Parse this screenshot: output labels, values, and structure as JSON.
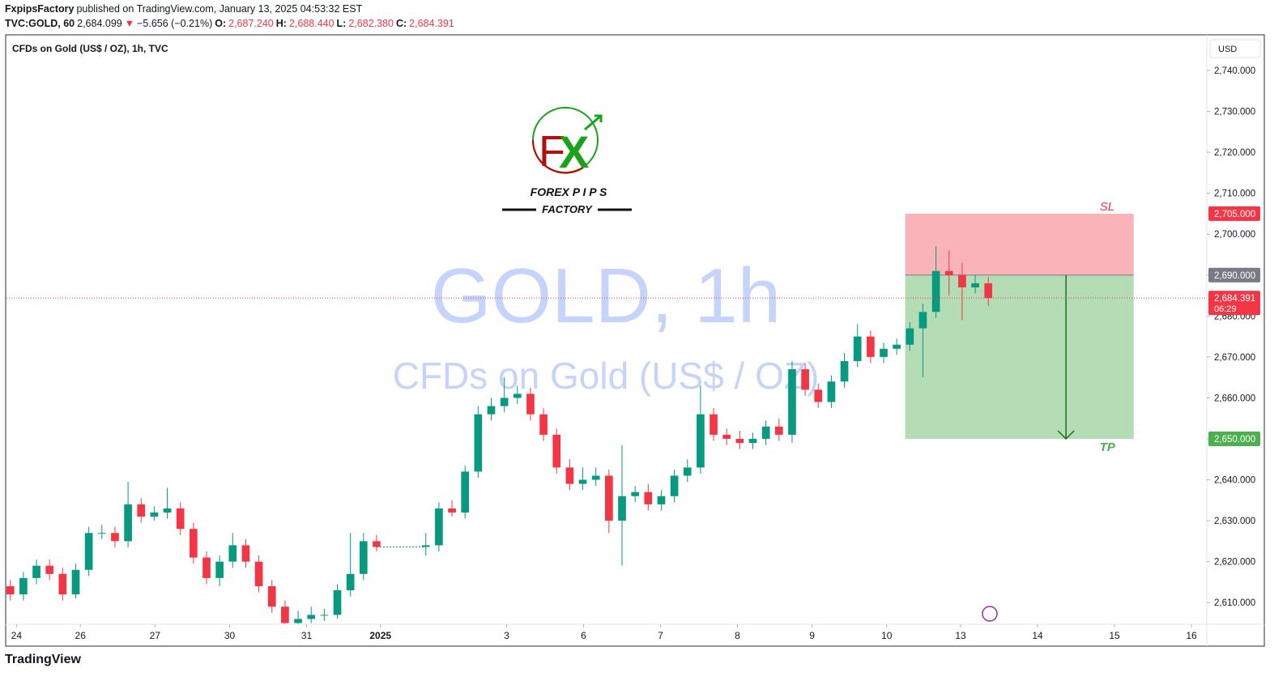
{
  "header": {
    "author": "FxpipsFactory",
    "published": "published on TradingView.com, January 13, 2025 04:53:32 EST",
    "symbol": "TVC:GOLD, 60",
    "last": "2,684.099",
    "arrow": "▼",
    "change": "−5.656 (−0.21%)",
    "o_label": "O:",
    "o": "2,687.240",
    "h_label": "H:",
    "h": "2,688.440",
    "l_label": "L:",
    "l": "2,682.380",
    "c_label": "C:",
    "c": "2,684.391"
  },
  "logo": {
    "f": "F",
    "x": "X",
    "line1": "FOREX  P I P S",
    "line2": "FACTORY"
  },
  "footer": "TradingView",
  "chart_data": {
    "type": "candlestick",
    "title": "CFDs on Gold (US$ / OZ), 1h, TVC",
    "watermark": "GOLD, 1h",
    "watermark_sub": "CFDs on Gold (US$ / OZ)",
    "currency": "USD",
    "up_color": "#089981",
    "down_color": "#f23645",
    "xlim": [
      0,
      15.6
    ],
    "ylim": [
      2604.7,
      2748.5
    ],
    "xticks": [
      {
        "value": 0.13,
        "label": "24"
      },
      {
        "value": 0.96,
        "label": "26"
      },
      {
        "value": 1.93,
        "label": "27"
      },
      {
        "value": 2.9,
        "label": "30"
      },
      {
        "value": 3.9,
        "label": "31"
      },
      {
        "value": 4.86,
        "label": "2025"
      },
      {
        "value": 6.5,
        "label": "3"
      },
      {
        "value": 7.5,
        "label": "6"
      },
      {
        "value": 8.5,
        "label": "7"
      },
      {
        "value": 9.5,
        "label": "8"
      },
      {
        "value": 10.47,
        "label": "9"
      },
      {
        "value": 11.44,
        "label": "10"
      },
      {
        "value": 12.4,
        "label": "13"
      },
      {
        "value": 13.4,
        "label": "14"
      },
      {
        "value": 14.4,
        "label": "15"
      },
      {
        "value": 15.4,
        "label": "16"
      }
    ],
    "yticks": [
      {
        "value": 2610,
        "label": "2,610.000"
      },
      {
        "value": 2620,
        "label": "2,620.000"
      },
      {
        "value": 2630,
        "label": "2,630.000"
      },
      {
        "value": 2640,
        "label": "2,640.000"
      },
      {
        "value": 2650,
        "label": "2,650.000"
      },
      {
        "value": 2660,
        "label": "2,660.000"
      },
      {
        "value": 2670,
        "label": "2,670.000"
      },
      {
        "value": 2680,
        "label": "2,680.000"
      },
      {
        "value": 2690,
        "label": "2,690.000"
      },
      {
        "value": 2700,
        "label": "2,700.000"
      },
      {
        "value": 2710,
        "label": "2,710.000"
      },
      {
        "value": 2720,
        "label": "2,720.000"
      },
      {
        "value": 2730,
        "label": "2,730.000"
      },
      {
        "value": 2740,
        "label": "2,740.000"
      }
    ],
    "x": [
      0.05,
      0.22,
      0.39,
      0.56,
      0.73,
      0.9,
      1.07,
      1.24,
      1.41,
      1.58,
      1.75,
      1.92,
      2.09,
      2.26,
      2.43,
      2.6,
      2.77,
      2.94,
      3.11,
      3.28,
      3.45,
      3.62,
      3.79,
      3.96,
      4.13,
      4.3,
      4.47,
      4.64,
      4.81,
      5.45,
      5.62,
      5.79,
      5.96,
      6.13,
      6.3,
      6.47,
      6.64,
      6.81,
      6.98,
      7.15,
      7.32,
      7.49,
      7.66,
      7.83,
      8.0,
      8.17,
      8.34,
      8.51,
      8.68,
      8.85,
      9.02,
      9.19,
      9.36,
      9.53,
      9.7,
      9.87,
      10.04,
      10.21,
      10.38,
      10.55,
      10.72,
      10.89,
      11.06,
      11.23,
      11.4,
      11.57,
      11.74,
      11.91,
      12.08,
      12.25,
      12.42,
      12.59,
      12.76
    ],
    "open": [
      2614,
      2612,
      2616,
      2619,
      2617,
      2612,
      2618,
      2627,
      2627,
      2625,
      2634,
      2631,
      2632,
      2633,
      2628,
      2621,
      2616,
      2620,
      2624,
      2620,
      2614,
      2609,
      2605,
      2606,
      2607,
      2607,
      2613,
      2617,
      2625,
      2623.6,
      2624,
      2633,
      2632,
      2642,
      2656,
      2658,
      2660,
      2661,
      2656,
      2651,
      2643,
      2639,
      2640,
      2641,
      2630,
      2636,
      2637,
      2634,
      2636,
      2641,
      2643,
      2656,
      2651,
      2650,
      2649,
      2650,
      2653,
      2651,
      2667,
      2662,
      2659,
      2664,
      2669,
      2675,
      2670,
      2672,
      2673,
      2677,
      2681,
      2691,
      2690,
      2687,
      2688
    ],
    "high": [
      2615.5,
      2617.5,
      2620.5,
      2620.5,
      2618.5,
      2619.5,
      2628.5,
      2629,
      2628.5,
      2639.5,
      2635.5,
      2633.5,
      2638,
      2634.5,
      2629.5,
      2622.5,
      2621.5,
      2627,
      2625.5,
      2621.5,
      2615.5,
      2610.5,
      2608,
      2609,
      2608.5,
      2614.5,
      2627,
      2627,
      2626.5,
      2627,
      2634.5,
      2635,
      2643.5,
      2658,
      2660,
      2665,
      2663,
      2662.5,
      2657.5,
      2652.5,
      2645,
      2643,
      2643,
      2642.5,
      2648.5,
      2638.5,
      2639,
      2637.5,
      2642.5,
      2645,
      2663,
      2657.5,
      2652.5,
      2652,
      2651.5,
      2654.5,
      2655,
      2669,
      2668.5,
      2663.5,
      2665.5,
      2671,
      2678,
      2676.5,
      2673.5,
      2674.5,
      2678.5,
      2683,
      2697,
      2696,
      2693,
      2690,
      2689.5
    ],
    "low": [
      2610.5,
      2610.5,
      2614.5,
      2615.5,
      2610.5,
      2611,
      2616.5,
      2625.5,
      2623.5,
      2623.5,
      2629.5,
      2630,
      2630.5,
      2626.5,
      2619.5,
      2614.5,
      2614,
      2618.5,
      2618.5,
      2612.5,
      2607.5,
      2604.8,
      2604.8,
      2605,
      2605.5,
      2606,
      2611.5,
      2615.5,
      2622.5,
      2621.5,
      2622.5,
      2631,
      2630.5,
      2640.5,
      2654.5,
      2656.5,
      2658.5,
      2654.5,
      2649.5,
      2641.5,
      2637.5,
      2637.5,
      2638.5,
      2627,
      2619,
      2634.5,
      2632.5,
      2632.5,
      2634.5,
      2639.5,
      2641.5,
      2649.5,
      2648.5,
      2647.5,
      2647.5,
      2648.5,
      2649.5,
      2649,
      2660.5,
      2657.5,
      2657.5,
      2662.5,
      2667.5,
      2668.5,
      2668.5,
      2670.5,
      2671.5,
      2665,
      2679.5,
      2685,
      2679,
      2685.5,
      2682.5
    ],
    "close": [
      2612,
      2616,
      2619,
      2617,
      2612,
      2618,
      2627,
      2627,
      2625,
      2634,
      2631,
      2632,
      2633,
      2628,
      2621,
      2616,
      2620,
      2624,
      2620,
      2614,
      2609,
      2605,
      2606,
      2607,
      2607,
      2613,
      2617,
      2625,
      2623.6,
      2624,
      2633,
      2632,
      2642,
      2656,
      2658,
      2660,
      2661,
      2656,
      2651,
      2643,
      2639,
      2640,
      2641,
      2630,
      2636,
      2637,
      2634,
      2636,
      2641,
      2643,
      2656,
      2651,
      2650,
      2649,
      2650,
      2653,
      2651,
      2667,
      2662,
      2659,
      2664,
      2669,
      2675,
      2670,
      2672,
      2673,
      2677,
      2681,
      2691,
      2690,
      2687,
      2688,
      2684.4
    ],
    "current_price": {
      "value": 2684.391,
      "label": "2,684.391",
      "countdown": "06:29",
      "color": "#f23645"
    },
    "position": {
      "x": [
        11.68,
        14.65
      ],
      "arrow_x": 13.77,
      "entry": {
        "value": 2690,
        "label": "2,690.000",
        "color": "#787b86"
      },
      "stop_loss": {
        "value": 2705,
        "label": "2,705.000",
        "text": "SL",
        "color": "#f23645"
      },
      "take_profit": {
        "value": 2650,
        "label": "2,650.000",
        "text": "TP",
        "color": "#4caf50"
      }
    }
  }
}
